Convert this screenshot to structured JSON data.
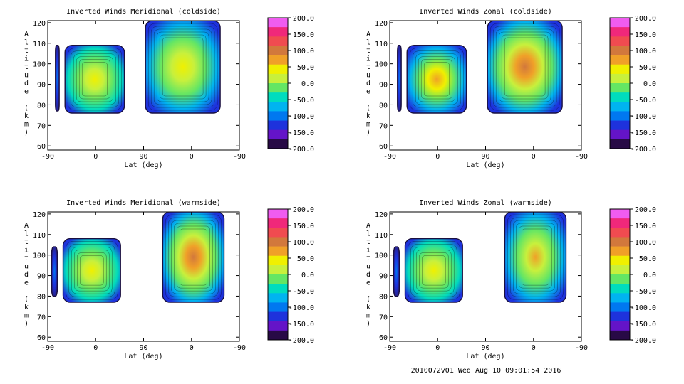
{
  "footer": "2010072v01 Wed Aug 10 09:01:54 2016",
  "colorbar": {
    "ticks": [
      "200.0",
      "150.0",
      "100.0",
      "50.0",
      "0.0",
      "-50.0",
      "-100.0",
      "-150.0",
      "-200.0"
    ],
    "colors": [
      "#f05cf0",
      "#f0287a",
      "#f04b50",
      "#d2783c",
      "#f0a028",
      "#f0f000",
      "#c8f03c",
      "#64e664",
      "#00dcbe",
      "#00b4f0",
      "#0078f0",
      "#1e32dc",
      "#6414c8",
      "#280a46"
    ]
  },
  "chart_data": [
    {
      "type": "heatmap",
      "title": "Inverted Winds Meridional (coldside)",
      "xlabel": "Lat (deg)",
      "ylabel": "Altitude (km)",
      "xticks": [
        "-90",
        "0",
        "90",
        "0",
        "-90"
      ],
      "yticks": [
        "60",
        "70",
        "80",
        "90",
        "100",
        "110",
        "120"
      ],
      "ylim": [
        58,
        121
      ],
      "zlim": [
        -200,
        200
      ],
      "blobs": [
        {
          "x": [
            0.04,
            0.06
          ],
          "y": [
            77,
            109
          ],
          "kind": "edge"
        },
        {
          "x": [
            0.09,
            0.4
          ],
          "y": [
            76,
            109
          ],
          "kind": "low"
        },
        {
          "x": [
            0.51,
            0.9
          ],
          "y": [
            76,
            121
          ],
          "kind": "high"
        }
      ]
    },
    {
      "type": "heatmap",
      "title": "Inverted Winds Zonal (coldside)",
      "xlabel": "Lat (deg)",
      "ylabel": "Altitude (km)",
      "xticks": [
        "-90",
        "0",
        "90",
        "0",
        "-90"
      ],
      "yticks": [
        "60",
        "70",
        "80",
        "90",
        "100",
        "110",
        "120"
      ],
      "ylim": [
        58,
        121
      ],
      "zlim": [
        -200,
        200
      ],
      "blobs": [
        {
          "x": [
            0.04,
            0.06
          ],
          "y": [
            77,
            109
          ],
          "kind": "edge"
        },
        {
          "x": [
            0.09,
            0.4
          ],
          "y": [
            76,
            109
          ],
          "kind": "warm"
        },
        {
          "x": [
            0.51,
            0.9
          ],
          "y": [
            76,
            121
          ],
          "kind": "hot"
        }
      ]
    },
    {
      "type": "heatmap",
      "title": "Inverted Winds Meridional (warmside)",
      "xlabel": "Lat (deg)",
      "ylabel": "Altitude (km)",
      "xticks": [
        "-90",
        "0",
        "90",
        "0",
        "-90"
      ],
      "yticks": [
        "60",
        "70",
        "80",
        "90",
        "100",
        "110",
        "120"
      ],
      "ylim": [
        58,
        121
      ],
      "zlim": [
        -200,
        200
      ],
      "blobs": [
        {
          "x": [
            0.02,
            0.05
          ],
          "y": [
            80,
            104
          ],
          "kind": "edge"
        },
        {
          "x": [
            0.08,
            0.38
          ],
          "y": [
            77,
            108
          ],
          "kind": "low"
        },
        {
          "x": [
            0.6,
            0.92
          ],
          "y": [
            77,
            121
          ],
          "kind": "hot"
        }
      ]
    },
    {
      "type": "heatmap",
      "title": "Inverted Winds Zonal (warmside)",
      "xlabel": "Lat (deg)",
      "ylabel": "Altitude (km)",
      "xticks": [
        "-90",
        "0",
        "90",
        "0",
        "-90"
      ],
      "yticks": [
        "60",
        "70",
        "80",
        "90",
        "100",
        "110",
        "120"
      ],
      "ylim": [
        58,
        121
      ],
      "zlim": [
        -200,
        200
      ],
      "blobs": [
        {
          "x": [
            0.02,
            0.05
          ],
          "y": [
            80,
            104
          ],
          "kind": "edge"
        },
        {
          "x": [
            0.08,
            0.38
          ],
          "y": [
            77,
            108
          ],
          "kind": "low"
        },
        {
          "x": [
            0.6,
            0.92
          ],
          "y": [
            77,
            121
          ],
          "kind": "mid"
        }
      ]
    }
  ]
}
